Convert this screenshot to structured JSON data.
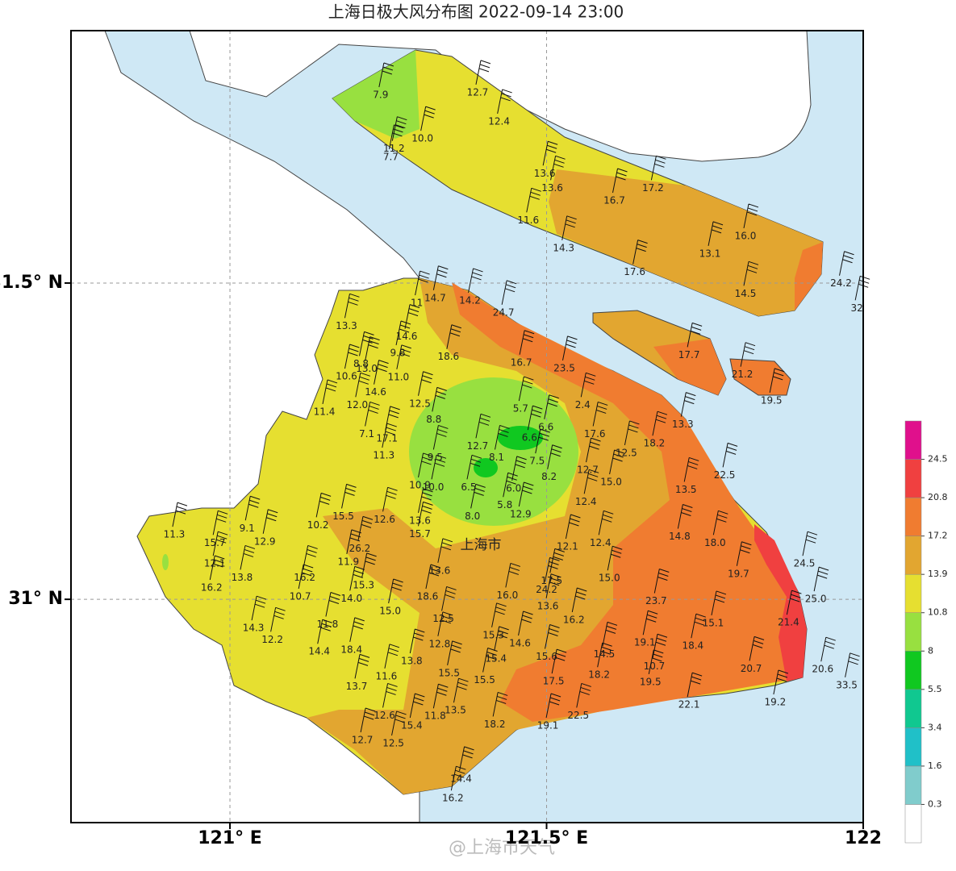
{
  "chart_data": {
    "type": "map",
    "title": "上海日极大风分布图 2022-09-14 23:00",
    "place_label": "上海市",
    "watermark": "@上海市天气",
    "xlim": [
      120.749,
      122.0
    ],
    "ylim": [
      30.647,
      31.899
    ],
    "xticks": [
      {
        "value": 121,
        "label": "121° E"
      },
      {
        "value": 121.5,
        "label": "121.5° E"
      },
      {
        "value": 122,
        "label": "122"
      }
    ],
    "yticks": [
      {
        "value": 31.5,
        "label": "31.5° N"
      },
      {
        "value": 31,
        "label": "31° N"
      }
    ],
    "grid": true,
    "legend": {
      "ticks": [
        0.3,
        1.6,
        3.4,
        5.5,
        8,
        10.8,
        13.9,
        17.2,
        20.8,
        24.5
      ],
      "colors": [
        "#ffffff",
        "#80cccc",
        "#20c0c8",
        "#10c890",
        "#10c820",
        "#98e040",
        "#e6df30",
        "#e2a630",
        "#f07c30",
        "#f04040",
        "#e0108c"
      ]
    },
    "stations": {
      "lon": [
        121.238,
        121.391,
        121.425,
        121.304,
        121.259,
        121.254,
        121.497,
        121.509,
        121.607,
        121.668,
        121.471,
        121.527,
        121.814,
        121.758,
        121.639,
        121.814,
        121.965,
        121.99,
        121.324,
        121.379,
        121.432,
        121.295,
        121.184,
        121.279,
        121.345,
        121.265,
        121.207,
        121.216,
        121.184,
        121.266,
        121.46,
        121.528,
        121.725,
        121.809,
        121.855,
        121.23,
        121.201,
        121.3,
        121.149,
        121.459,
        121.557,
        121.322,
        121.499,
        121.715,
        121.216,
        121.248,
        121.473,
        121.576,
        121.67,
        121.391,
        121.243,
        121.626,
        121.324,
        121.421,
        121.485,
        121.781,
        121.565,
        121.504,
        121.3,
        121.321,
        121.377,
        121.448,
        121.602,
        121.72,
        121.434,
        121.562,
        121.459,
        121.179,
        121.244,
        121.3,
        121.383,
        120.912,
        121.027,
        121.139,
        120.976,
        121.055,
        121.3,
        121.71,
        121.766,
        121.585,
        121.533,
        121.205,
        120.976,
        121.187,
        121.907,
        121.803,
        121.331,
        121.019,
        121.118,
        121.599,
        121.508,
        121.5,
        120.971,
        121.211,
        121.502,
        121.438,
        121.111,
        121.192,
        121.312,
        121.673,
        121.925,
        121.253,
        121.337,
        121.543,
        121.154,
        121.037,
        121.763,
        121.882,
        121.416,
        121.067,
        121.655,
        121.731,
        121.331,
        121.458,
        121.141,
        121.192,
        121.591,
        121.42,
        121.5,
        121.287,
        121.67,
        121.823,
        121.936,
        121.346,
        121.247,
        121.583,
        121.402,
        121.511,
        121.2,
        121.664,
        121.974,
        121.861,
        121.725,
        121.356,
        121.244,
        121.324,
        121.55,
        121.287,
        121.418,
        121.502,
        121.209,
        121.258,
        121.365,
        121.352
      ],
      "lat": [
        31.797,
        31.801,
        31.755,
        31.728,
        31.712,
        31.699,
        31.673,
        31.65,
        31.63,
        31.65,
        31.599,
        31.555,
        31.574,
        31.546,
        31.517,
        31.483,
        31.499,
        31.46,
        31.476,
        31.472,
        31.453,
        31.468,
        31.432,
        31.415,
        31.383,
        31.389,
        31.372,
        31.364,
        31.352,
        31.351,
        31.374,
        31.365,
        31.386,
        31.355,
        31.314,
        31.327,
        31.307,
        31.309,
        31.296,
        31.301,
        31.307,
        31.284,
        31.272,
        31.276,
        31.261,
        31.254,
        31.255,
        31.261,
        31.246,
        31.242,
        31.227,
        31.231,
        31.224,
        31.224,
        31.218,
        31.196,
        31.204,
        31.193,
        31.18,
        31.177,
        31.177,
        31.175,
        31.185,
        31.173,
        31.149,
        31.154,
        31.134,
        31.131,
        31.126,
        31.124,
        31.131,
        31.102,
        31.112,
        31.117,
        31.089,
        31.091,
        31.103,
        31.099,
        31.089,
        31.089,
        31.083,
        31.08,
        31.056,
        31.059,
        31.056,
        31.04,
        31.045,
        31.034,
        31.034,
        31.033,
        31.029,
        31.015,
        31.018,
        31.022,
        30.989,
        31.006,
        31.004,
        31.001,
        31.004,
        30.997,
        31.0,
        30.981,
        30.969,
        30.967,
        30.96,
        30.954,
        30.962,
        30.963,
        30.943,
        30.936,
        30.931,
        30.926,
        30.929,
        30.93,
        30.917,
        30.92,
        30.913,
        30.906,
        30.909,
        30.902,
        30.894,
        30.89,
        30.889,
        30.883,
        30.878,
        30.88,
        30.872,
        30.87,
        30.862,
        30.869,
        30.864,
        30.837,
        30.833,
        30.824,
        30.816,
        30.815,
        30.816,
        30.8,
        30.802,
        30.8,
        30.777,
        30.772,
        30.716,
        30.685
      ],
      "values": [
        7.9,
        12.7,
        12.4,
        10.0,
        11.2,
        7.7,
        13.6,
        13.6,
        16.7,
        17.2,
        11.6,
        14.3,
        16.0,
        13.1,
        17.6,
        14.5,
        24.2,
        32,
        14.7,
        14.2,
        24.7,
        11,
        13.3,
        14.6,
        18.6,
        9.8,
        8.8,
        13.0,
        10.6,
        11.0,
        16.7,
        23.5,
        17.7,
        21.2,
        19.5,
        14.6,
        12.0,
        12.5,
        11.4,
        5.7,
        2.4,
        8.8,
        6.6,
        13.3,
        7.1,
        17.1,
        6.6,
        17.6,
        18.2,
        12.7,
        11.3,
        12.5,
        9.5,
        8.1,
        7.5,
        22.5,
        12.7,
        8.2,
        10.9,
        10.0,
        6.5,
        6.0,
        15.0,
        13.5,
        5.8,
        12.4,
        12.9,
        15.5,
        12.6,
        13.6,
        8.0,
        11.3,
        9.1,
        10.2,
        15.7,
        12.9,
        15.7,
        14.8,
        18.0,
        12.4,
        12.1,
        26.2,
        12.1,
        11.9,
        24.5,
        19.7,
        13.6,
        13.8,
        16.2,
        15.0,
        17.5,
        24.2,
        16.2,
        15.3,
        13.6,
        16.0,
        10.7,
        14.0,
        18.6,
        23.7,
        25.0,
        15.0,
        12.5,
        16.2,
        11.8,
        14.3,
        15.1,
        21.4,
        15.3,
        12.2,
        19.1,
        18.4,
        12.8,
        14.6,
        14.4,
        18.4,
        14.5,
        15.4,
        15.6,
        13.8,
        10.7,
        20.7,
        20.6,
        15.5,
        11.6,
        18.2,
        15.5,
        17.5,
        13.7,
        19.5,
        33.5,
        19.2,
        22.1,
        13.5,
        12.6,
        11.8,
        22.5,
        15.4,
        18.2,
        19.1,
        12.7,
        12.5,
        14.4,
        16.2
      ],
      "value_labels": [
        "7.9",
        "12.7",
        "12.4",
        "10.0",
        "11.2",
        "7.7",
        "13.6",
        "13.6",
        "16.7",
        "17.2",
        "11.6",
        "14.3",
        "16.0",
        "13.1",
        "17.6",
        "14.5",
        "24.2",
        "32",
        "14.7",
        "14.2",
        "24.7",
        "11",
        "13.3",
        "14.6",
        "18.6",
        "9.8",
        "8.8",
        "13.0",
        "10.6",
        "11.0",
        "16.7",
        "23.5",
        "17.7",
        "21.2",
        "19.5",
        "14.6",
        "12.0",
        "12.5",
        "11.4",
        "5.7",
        "2.4",
        "8.8",
        "6.6",
        "13.3",
        "7.1",
        "17.1",
        "6.6",
        "17.6",
        "18.2",
        "12.7",
        "11.3",
        "12.5",
        "9.5",
        "8.1",
        "7.5",
        "22.5",
        "12.7",
        "8.2",
        "10.9",
        "10.0",
        "6.5",
        "6.0",
        "15.0",
        "13.5",
        "5.8",
        "12.4",
        "12.9",
        "15.5",
        "12.6",
        "13.6",
        "8.0",
        "11.3",
        "9.1",
        "10.2",
        "15.7",
        "12.9",
        "15.7",
        "14.8",
        "18.0",
        "12.4",
        "12.1",
        "26.2",
        "12.1",
        "11.9",
        "24.5",
        "19.7",
        "13.6",
        "13.8",
        "16.2",
        "15.0",
        "17.5",
        "24.2",
        "16.2",
        "15.3",
        "13.6",
        "16.0",
        "10.7",
        "14.0",
        "18.6",
        "23.7",
        "25.0",
        "15.0",
        "12.5",
        "16.2",
        "11.8",
        "14.3",
        "15.1",
        "21.4",
        "15.3",
        "12.2",
        "19.1",
        "18.4",
        "12.8",
        "14.6",
        "14.4",
        "18.4",
        "14.5",
        "15.4",
        "15.6",
        "13.8",
        "10.7",
        "20.7",
        "20.6",
        "15.5",
        "11.6",
        "18.2",
        "15.5",
        "17.5",
        "13.7",
        "19.5",
        "33.5",
        "19.2",
        "22.1",
        "13.5",
        "12.6",
        "11.8",
        "22.5",
        "15.4",
        "18.2",
        "19.1",
        "12.7",
        "12.5",
        "14.4",
        "16.2"
      ]
    }
  }
}
